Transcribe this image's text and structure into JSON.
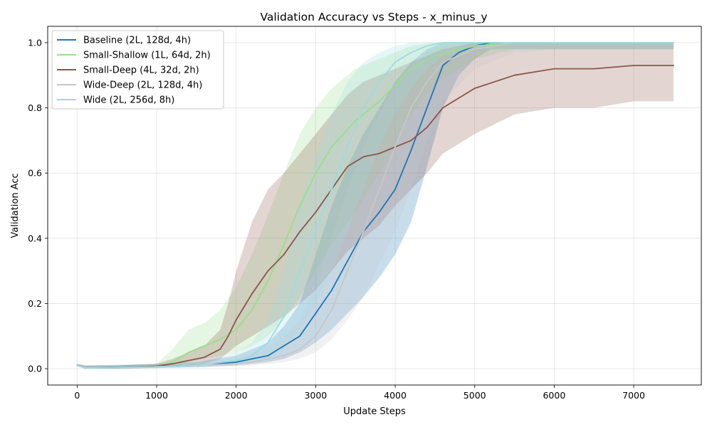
{
  "chart_data": {
    "type": "line",
    "title": "Validation Accuracy vs Steps - x_minus_y",
    "xlabel": "Update Steps",
    "ylabel": "Validation Acc",
    "xlim": [
      -370,
      7850
    ],
    "ylim": [
      -0.05,
      1.05
    ],
    "xticks": [
      0,
      1000,
      2000,
      3000,
      4000,
      5000,
      6000,
      7000
    ],
    "yticks": [
      0.0,
      0.2,
      0.4,
      0.6,
      0.8,
      1.0
    ],
    "xtick_labels": [
      "0",
      "1000",
      "2000",
      "3000",
      "4000",
      "5000",
      "6000",
      "7000"
    ],
    "ytick_labels": [
      "0.0",
      "0.2",
      "0.4",
      "0.6",
      "0.8",
      "1.0"
    ],
    "grid": true,
    "legend_position": "top-left",
    "series": [
      {
        "name": "Baseline (2L, 128d, 4h)",
        "color": "#1f77b4",
        "x": [
          0,
          100,
          500,
          1000,
          1500,
          2000,
          2200,
          2400,
          2600,
          2800,
          3000,
          3200,
          3400,
          3600,
          3800,
          4000,
          4200,
          4400,
          4600,
          4800,
          5000,
          5200,
          5600,
          6000,
          6500,
          7000,
          7500
        ],
        "y": [
          0.01,
          0.003,
          0.005,
          0.007,
          0.01,
          0.02,
          0.03,
          0.04,
          0.07,
          0.1,
          0.17,
          0.24,
          0.33,
          0.42,
          0.48,
          0.55,
          0.67,
          0.8,
          0.93,
          0.97,
          0.99,
          1.0,
          1.0,
          1.0,
          1.0,
          1.0,
          1.0
        ],
        "band_lower": [
          0.01,
          0.0,
          0.0,
          0.003,
          0.005,
          0.01,
          0.015,
          0.02,
          0.03,
          0.05,
          0.08,
          0.12,
          0.17,
          0.22,
          0.28,
          0.35,
          0.45,
          0.62,
          0.8,
          0.9,
          0.95,
          0.98,
          0.98,
          0.98,
          0.98,
          0.98,
          0.98
        ],
        "band_upper": [
          0.015,
          0.01,
          0.012,
          0.015,
          0.02,
          0.04,
          0.06,
          0.08,
          0.13,
          0.2,
          0.35,
          0.5,
          0.62,
          0.72,
          0.8,
          0.88,
          0.94,
          0.98,
          1.0,
          1.0,
          1.0,
          1.0,
          1.0,
          1.0,
          1.0,
          1.0,
          1.0
        ]
      },
      {
        "name": "Small-Shallow (1L, 64d, 2h)",
        "color": "#98df8a",
        "x": [
          0,
          100,
          500,
          1000,
          1200,
          1400,
          1600,
          1800,
          2000,
          2200,
          2400,
          2600,
          2800,
          3000,
          3200,
          3500,
          3800,
          4000,
          4200,
          4500,
          5000,
          5500,
          6000,
          6500,
          7000,
          7500
        ],
        "y": [
          0.01,
          0.002,
          0.003,
          0.006,
          0.02,
          0.05,
          0.07,
          0.09,
          0.12,
          0.18,
          0.27,
          0.38,
          0.5,
          0.6,
          0.68,
          0.76,
          0.82,
          0.87,
          0.92,
          0.96,
          0.99,
          1.0,
          1.0,
          1.0,
          1.0,
          1.0
        ],
        "band_lower": [
          0.01,
          0.0,
          0.0,
          0.002,
          0.005,
          0.02,
          0.03,
          0.04,
          0.05,
          0.07,
          0.1,
          0.15,
          0.22,
          0.3,
          0.38,
          0.48,
          0.6,
          0.68,
          0.78,
          0.87,
          0.95,
          0.98,
          0.98,
          0.98,
          0.98,
          0.98
        ],
        "band_upper": [
          0.015,
          0.008,
          0.01,
          0.015,
          0.06,
          0.12,
          0.14,
          0.18,
          0.25,
          0.35,
          0.47,
          0.6,
          0.72,
          0.8,
          0.86,
          0.92,
          0.95,
          0.97,
          0.99,
          1.0,
          1.0,
          1.0,
          1.0,
          1.0,
          1.0,
          1.0
        ]
      },
      {
        "name": "Small-Deep (4L, 32d, 2h)",
        "color": "#8c564b",
        "x": [
          0,
          100,
          500,
          1000,
          1200,
          1400,
          1600,
          1800,
          1900,
          2000,
          2200,
          2400,
          2600,
          2800,
          3000,
          3200,
          3400,
          3600,
          3800,
          4000,
          4200,
          4400,
          4600,
          5000,
          5500,
          6000,
          6500,
          7000,
          7500
        ],
        "y": [
          0.01,
          0.003,
          0.004,
          0.008,
          0.015,
          0.025,
          0.035,
          0.06,
          0.1,
          0.15,
          0.23,
          0.3,
          0.35,
          0.42,
          0.48,
          0.55,
          0.62,
          0.65,
          0.66,
          0.68,
          0.7,
          0.74,
          0.8,
          0.86,
          0.9,
          0.92,
          0.92,
          0.93,
          0.93
        ],
        "band_lower": [
          0.01,
          0.0,
          0.0,
          0.003,
          0.006,
          0.01,
          0.015,
          0.03,
          0.05,
          0.07,
          0.1,
          0.13,
          0.16,
          0.2,
          0.24,
          0.3,
          0.36,
          0.4,
          0.44,
          0.5,
          0.55,
          0.6,
          0.66,
          0.72,
          0.78,
          0.8,
          0.8,
          0.82,
          0.82
        ],
        "band_upper": [
          0.015,
          0.01,
          0.01,
          0.015,
          0.03,
          0.05,
          0.07,
          0.12,
          0.2,
          0.3,
          0.45,
          0.55,
          0.6,
          0.66,
          0.72,
          0.78,
          0.84,
          0.88,
          0.9,
          0.92,
          0.94,
          0.96,
          0.98,
          1.0,
          1.0,
          1.0,
          1.0,
          1.0,
          1.0
        ]
      },
      {
        "name": "Wide-Deep (2L, 128d, 4h)",
        "color": "#c7c7c7",
        "x": [
          0,
          100,
          500,
          1000,
          1500,
          2000,
          2200,
          2400,
          2600,
          2800,
          3000,
          3200,
          3400,
          3600,
          3800,
          4000,
          4200,
          4400,
          4600,
          5000,
          5500,
          6000,
          6500,
          7000,
          7500
        ],
        "y": [
          0.01,
          0.003,
          0.004,
          0.006,
          0.01,
          0.015,
          0.02,
          0.03,
          0.04,
          0.06,
          0.1,
          0.18,
          0.3,
          0.42,
          0.55,
          0.68,
          0.8,
          0.88,
          0.94,
          0.98,
          1.0,
          1.0,
          1.0,
          1.0,
          1.0
        ],
        "band_lower": [
          0.01,
          0.0,
          0.0,
          0.002,
          0.004,
          0.008,
          0.01,
          0.015,
          0.02,
          0.03,
          0.05,
          0.09,
          0.15,
          0.22,
          0.32,
          0.42,
          0.55,
          0.7,
          0.82,
          0.92,
          0.97,
          0.98,
          0.98,
          0.98,
          0.98
        ],
        "band_upper": [
          0.015,
          0.01,
          0.01,
          0.012,
          0.02,
          0.03,
          0.05,
          0.07,
          0.1,
          0.15,
          0.25,
          0.4,
          0.55,
          0.68,
          0.78,
          0.87,
          0.93,
          0.97,
          0.99,
          1.0,
          1.0,
          1.0,
          1.0,
          1.0,
          1.0
        ]
      },
      {
        "name": "Wide (2L, 256d, 8h)",
        "color": "#9edae5",
        "x": [
          0,
          100,
          500,
          1000,
          1500,
          2000,
          2200,
          2400,
          2600,
          2800,
          3000,
          3200,
          3400,
          3600,
          3800,
          4000,
          4200,
          4400,
          4600,
          5000,
          5500,
          6000,
          6500,
          7000,
          7500
        ],
        "y": [
          0.01,
          0.002,
          0.004,
          0.006,
          0.01,
          0.025,
          0.04,
          0.08,
          0.16,
          0.3,
          0.42,
          0.55,
          0.68,
          0.8,
          0.88,
          0.94,
          0.97,
          0.99,
          1.0,
          1.0,
          1.0,
          1.0,
          1.0,
          1.0,
          1.0
        ],
        "band_lower": [
          0.01,
          0.0,
          0.0,
          0.002,
          0.004,
          0.01,
          0.02,
          0.03,
          0.06,
          0.12,
          0.2,
          0.3,
          0.42,
          0.55,
          0.68,
          0.78,
          0.86,
          0.92,
          0.96,
          0.98,
          0.98,
          0.98,
          0.98,
          0.98,
          0.98
        ],
        "band_upper": [
          0.015,
          0.008,
          0.01,
          0.012,
          0.02,
          0.05,
          0.08,
          0.15,
          0.3,
          0.5,
          0.65,
          0.78,
          0.88,
          0.94,
          0.97,
          0.99,
          1.0,
          1.0,
          1.0,
          1.0,
          1.0,
          1.0,
          1.0,
          1.0,
          1.0
        ]
      }
    ]
  }
}
